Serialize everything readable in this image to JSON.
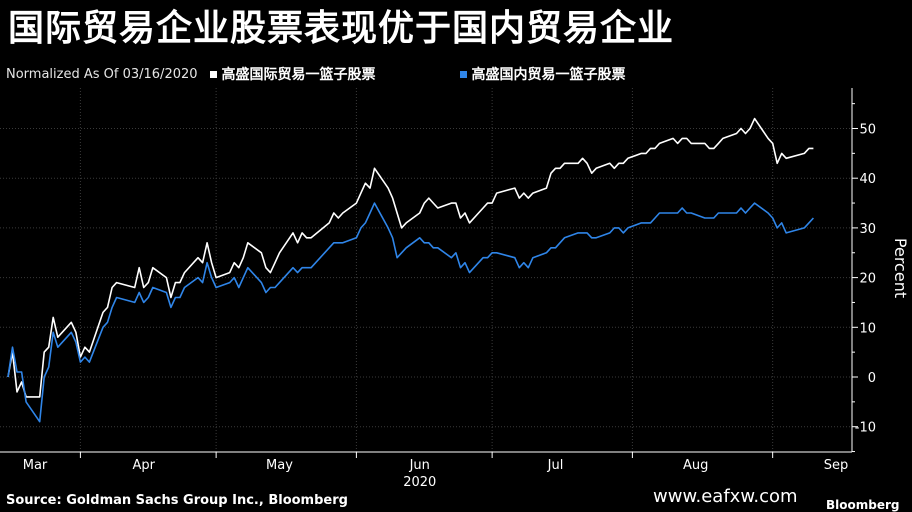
{
  "title": "国际贸易企业股票表现优于国内贸易企业",
  "note": "Normalized As Of 03/16/2020",
  "source": "Source: Goldman Sachs Group Inc., Bloomberg",
  "watermark": "www.eafxw.com",
  "brand": "Bloomberg",
  "chart_data": {
    "type": "line",
    "title": "国际贸易企业股票表现优于国内贸易企业",
    "subtitle": "Normalized As Of 03/16/2020",
    "ylabel": "Percent",
    "xlabel": "",
    "ylim": [
      -15,
      58
    ],
    "yticks": [
      -10,
      0,
      10,
      20,
      30,
      40,
      50
    ],
    "grid": true,
    "legend_position": "top",
    "x_range": [
      "2020-03-16",
      "2020-09-04"
    ],
    "month_labels": [
      {
        "label": "Mar",
        "date": "2020-03-16"
      },
      {
        "label": "Apr",
        "date": "2020-04-15"
      },
      {
        "label": "May",
        "date": "2020-05-15"
      },
      {
        "label": "Jun",
        "date": "2020-06-15"
      },
      {
        "label": "Jul",
        "date": "2020-07-15"
      },
      {
        "label": "Aug",
        "date": "2020-08-15"
      },
      {
        "label": "Sep",
        "date": "2020-09-15"
      }
    ],
    "year_label": "2020",
    "year_label_date": "2020-06-15",
    "series": [
      {
        "name": "高盛国际贸易一篮子股票",
        "color": "#ffffff",
        "points": [
          [
            "2020-03-16",
            0
          ],
          [
            "2020-03-17",
            5
          ],
          [
            "2020-03-18",
            -3
          ],
          [
            "2020-03-19",
            -1
          ],
          [
            "2020-03-20",
            -4
          ],
          [
            "2020-03-23",
            -4
          ],
          [
            "2020-03-24",
            5
          ],
          [
            "2020-03-25",
            6
          ],
          [
            "2020-03-26",
            12
          ],
          [
            "2020-03-27",
            8
          ],
          [
            "2020-03-30",
            11
          ],
          [
            "2020-03-31",
            9
          ],
          [
            "2020-04-01",
            4
          ],
          [
            "2020-04-02",
            6
          ],
          [
            "2020-04-03",
            5
          ],
          [
            "2020-04-06",
            13
          ],
          [
            "2020-04-07",
            14
          ],
          [
            "2020-04-08",
            18
          ],
          [
            "2020-04-09",
            19
          ],
          [
            "2020-04-13",
            18
          ],
          [
            "2020-04-14",
            22
          ],
          [
            "2020-04-15",
            18
          ],
          [
            "2020-04-16",
            19
          ],
          [
            "2020-04-17",
            22
          ],
          [
            "2020-04-20",
            20
          ],
          [
            "2020-04-21",
            16
          ],
          [
            "2020-04-22",
            19
          ],
          [
            "2020-04-23",
            19
          ],
          [
            "2020-04-24",
            21
          ],
          [
            "2020-04-27",
            24
          ],
          [
            "2020-04-28",
            23
          ],
          [
            "2020-04-29",
            27
          ],
          [
            "2020-04-30",
            23
          ],
          [
            "2020-05-01",
            20
          ],
          [
            "2020-05-04",
            21
          ],
          [
            "2020-05-05",
            23
          ],
          [
            "2020-05-06",
            22
          ],
          [
            "2020-05-07",
            24
          ],
          [
            "2020-05-08",
            27
          ],
          [
            "2020-05-11",
            25
          ],
          [
            "2020-05-12",
            22
          ],
          [
            "2020-05-13",
            21
          ],
          [
            "2020-05-14",
            23
          ],
          [
            "2020-05-15",
            25
          ],
          [
            "2020-05-18",
            29
          ],
          [
            "2020-05-19",
            27
          ],
          [
            "2020-05-20",
            29
          ],
          [
            "2020-05-21",
            28
          ],
          [
            "2020-05-22",
            28
          ],
          [
            "2020-05-26",
            31
          ],
          [
            "2020-05-27",
            33
          ],
          [
            "2020-05-28",
            32
          ],
          [
            "2020-05-29",
            33
          ],
          [
            "2020-06-01",
            35
          ],
          [
            "2020-06-02",
            37
          ],
          [
            "2020-06-03",
            39
          ],
          [
            "2020-06-04",
            38
          ],
          [
            "2020-06-05",
            42
          ],
          [
            "2020-06-08",
            38
          ],
          [
            "2020-06-09",
            36
          ],
          [
            "2020-06-10",
            33
          ],
          [
            "2020-06-11",
            30
          ],
          [
            "2020-06-12",
            31
          ],
          [
            "2020-06-15",
            33
          ],
          [
            "2020-06-16",
            35
          ],
          [
            "2020-06-17",
            36
          ],
          [
            "2020-06-18",
            35
          ],
          [
            "2020-06-19",
            34
          ],
          [
            "2020-06-22",
            35
          ],
          [
            "2020-06-23",
            35
          ],
          [
            "2020-06-24",
            32
          ],
          [
            "2020-06-25",
            33
          ],
          [
            "2020-06-26",
            31
          ],
          [
            "2020-06-29",
            34
          ],
          [
            "2020-06-30",
            35
          ],
          [
            "2020-07-01",
            35
          ],
          [
            "2020-07-02",
            37
          ],
          [
            "2020-07-06",
            38
          ],
          [
            "2020-07-07",
            36
          ],
          [
            "2020-07-08",
            37
          ],
          [
            "2020-07-09",
            36
          ],
          [
            "2020-07-10",
            37
          ],
          [
            "2020-07-13",
            38
          ],
          [
            "2020-07-14",
            41
          ],
          [
            "2020-07-15",
            42
          ],
          [
            "2020-07-16",
            42
          ],
          [
            "2020-07-17",
            43
          ],
          [
            "2020-07-20",
            43
          ],
          [
            "2020-07-21",
            44
          ],
          [
            "2020-07-22",
            43
          ],
          [
            "2020-07-23",
            41
          ],
          [
            "2020-07-24",
            42
          ],
          [
            "2020-07-27",
            43
          ],
          [
            "2020-07-28",
            42
          ],
          [
            "2020-07-29",
            43
          ],
          [
            "2020-07-30",
            43
          ],
          [
            "2020-07-31",
            44
          ],
          [
            "2020-08-03",
            45
          ],
          [
            "2020-08-04",
            45
          ],
          [
            "2020-08-05",
            46
          ],
          [
            "2020-08-06",
            46
          ],
          [
            "2020-08-07",
            47
          ],
          [
            "2020-08-10",
            48
          ],
          [
            "2020-08-11",
            47
          ],
          [
            "2020-08-12",
            48
          ],
          [
            "2020-08-13",
            48
          ],
          [
            "2020-08-14",
            47
          ],
          [
            "2020-08-17",
            47
          ],
          [
            "2020-08-18",
            46
          ],
          [
            "2020-08-19",
            46
          ],
          [
            "2020-08-20",
            47
          ],
          [
            "2020-08-21",
            48
          ],
          [
            "2020-08-24",
            49
          ],
          [
            "2020-08-25",
            50
          ],
          [
            "2020-08-26",
            49
          ],
          [
            "2020-08-27",
            50
          ],
          [
            "2020-08-28",
            52
          ],
          [
            "2020-08-31",
            48
          ],
          [
            "2020-09-01",
            47
          ],
          [
            "2020-09-02",
            43
          ],
          [
            "2020-09-03",
            45
          ],
          [
            "2020-09-04",
            44
          ],
          [
            "2020-09-08",
            45
          ],
          [
            "2020-09-09",
            46
          ],
          [
            "2020-09-10",
            46
          ]
        ]
      },
      {
        "name": "高盛国内贸易一篮子股票",
        "color": "#2f85e8",
        "points": [
          [
            "2020-03-16",
            0
          ],
          [
            "2020-03-17",
            6
          ],
          [
            "2020-03-18",
            1
          ],
          [
            "2020-03-19",
            1
          ],
          [
            "2020-03-20",
            -5
          ],
          [
            "2020-03-23",
            -9
          ],
          [
            "2020-03-24",
            0
          ],
          [
            "2020-03-25",
            2
          ],
          [
            "2020-03-26",
            9
          ],
          [
            "2020-03-27",
            6
          ],
          [
            "2020-03-30",
            9
          ],
          [
            "2020-03-31",
            7
          ],
          [
            "2020-04-01",
            3
          ],
          [
            "2020-04-02",
            4
          ],
          [
            "2020-04-03",
            3
          ],
          [
            "2020-04-06",
            10
          ],
          [
            "2020-04-07",
            11
          ],
          [
            "2020-04-08",
            14
          ],
          [
            "2020-04-09",
            16
          ],
          [
            "2020-04-13",
            15
          ],
          [
            "2020-04-14",
            17
          ],
          [
            "2020-04-15",
            15
          ],
          [
            "2020-04-16",
            16
          ],
          [
            "2020-04-17",
            18
          ],
          [
            "2020-04-20",
            17
          ],
          [
            "2020-04-21",
            14
          ],
          [
            "2020-04-22",
            16
          ],
          [
            "2020-04-23",
            16
          ],
          [
            "2020-04-24",
            18
          ],
          [
            "2020-04-27",
            20
          ],
          [
            "2020-04-28",
            19
          ],
          [
            "2020-04-29",
            23
          ],
          [
            "2020-04-30",
            20
          ],
          [
            "2020-05-01",
            18
          ],
          [
            "2020-05-04",
            19
          ],
          [
            "2020-05-05",
            20
          ],
          [
            "2020-05-06",
            18
          ],
          [
            "2020-05-07",
            20
          ],
          [
            "2020-05-08",
            22
          ],
          [
            "2020-05-11",
            19
          ],
          [
            "2020-05-12",
            17
          ],
          [
            "2020-05-13",
            18
          ],
          [
            "2020-05-14",
            18
          ],
          [
            "2020-05-15",
            19
          ],
          [
            "2020-05-18",
            22
          ],
          [
            "2020-05-19",
            21
          ],
          [
            "2020-05-20",
            22
          ],
          [
            "2020-05-21",
            22
          ],
          [
            "2020-05-22",
            22
          ],
          [
            "2020-05-26",
            26
          ],
          [
            "2020-05-27",
            27
          ],
          [
            "2020-05-28",
            27
          ],
          [
            "2020-05-29",
            27
          ],
          [
            "2020-06-01",
            28
          ],
          [
            "2020-06-02",
            30
          ],
          [
            "2020-06-03",
            31
          ],
          [
            "2020-06-04",
            33
          ],
          [
            "2020-06-05",
            35
          ],
          [
            "2020-06-08",
            30
          ],
          [
            "2020-06-09",
            28
          ],
          [
            "2020-06-10",
            24
          ],
          [
            "2020-06-11",
            25
          ],
          [
            "2020-06-12",
            26
          ],
          [
            "2020-06-15",
            28
          ],
          [
            "2020-06-16",
            27
          ],
          [
            "2020-06-17",
            27
          ],
          [
            "2020-06-18",
            26
          ],
          [
            "2020-06-19",
            26
          ],
          [
            "2020-06-22",
            24
          ],
          [
            "2020-06-23",
            25
          ],
          [
            "2020-06-24",
            22
          ],
          [
            "2020-06-25",
            23
          ],
          [
            "2020-06-26",
            21
          ],
          [
            "2020-06-29",
            24
          ],
          [
            "2020-06-30",
            24
          ],
          [
            "2020-07-01",
            25
          ],
          [
            "2020-07-02",
            25
          ],
          [
            "2020-07-06",
            24
          ],
          [
            "2020-07-07",
            22
          ],
          [
            "2020-07-08",
            23
          ],
          [
            "2020-07-09",
            22
          ],
          [
            "2020-07-10",
            24
          ],
          [
            "2020-07-13",
            25
          ],
          [
            "2020-07-14",
            26
          ],
          [
            "2020-07-15",
            26
          ],
          [
            "2020-07-16",
            27
          ],
          [
            "2020-07-17",
            28
          ],
          [
            "2020-07-20",
            29
          ],
          [
            "2020-07-21",
            29
          ],
          [
            "2020-07-22",
            29
          ],
          [
            "2020-07-23",
            28
          ],
          [
            "2020-07-24",
            28
          ],
          [
            "2020-07-27",
            29
          ],
          [
            "2020-07-28",
            30
          ],
          [
            "2020-07-29",
            30
          ],
          [
            "2020-07-30",
            29
          ],
          [
            "2020-07-31",
            30
          ],
          [
            "2020-08-03",
            31
          ],
          [
            "2020-08-04",
            31
          ],
          [
            "2020-08-05",
            31
          ],
          [
            "2020-08-06",
            32
          ],
          [
            "2020-08-07",
            33
          ],
          [
            "2020-08-10",
            33
          ],
          [
            "2020-08-11",
            33
          ],
          [
            "2020-08-12",
            34
          ],
          [
            "2020-08-13",
            33
          ],
          [
            "2020-08-14",
            33
          ],
          [
            "2020-08-17",
            32
          ],
          [
            "2020-08-18",
            32
          ],
          [
            "2020-08-19",
            32
          ],
          [
            "2020-08-20",
            33
          ],
          [
            "2020-08-21",
            33
          ],
          [
            "2020-08-24",
            33
          ],
          [
            "2020-08-25",
            34
          ],
          [
            "2020-08-26",
            33
          ],
          [
            "2020-08-27",
            34
          ],
          [
            "2020-08-28",
            35
          ],
          [
            "2020-08-31",
            33
          ],
          [
            "2020-09-01",
            32
          ],
          [
            "2020-09-02",
            30
          ],
          [
            "2020-09-03",
            31
          ],
          [
            "2020-09-04",
            29
          ],
          [
            "2020-09-08",
            30
          ],
          [
            "2020-09-09",
            31
          ],
          [
            "2020-09-10",
            32
          ]
        ]
      }
    ]
  }
}
